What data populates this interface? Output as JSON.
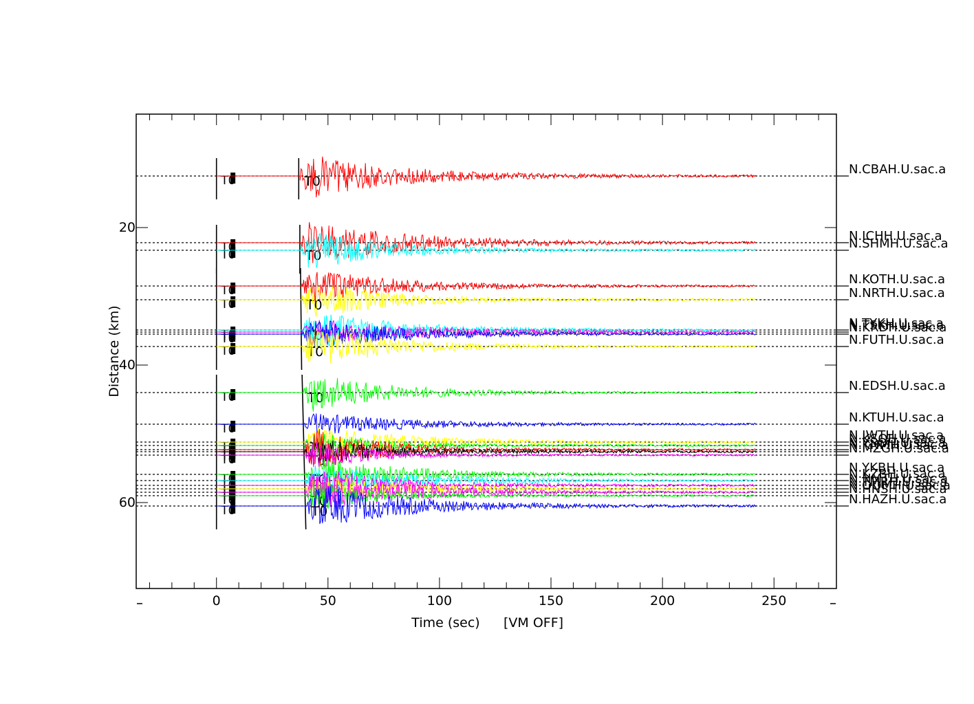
{
  "chart_data": {
    "type": "line",
    "title": "",
    "xlabel": "Time (sec)",
    "x_annotation": "[VM OFF]",
    "ylabel": "Distance (km)",
    "xlim": [
      -36,
      278
    ],
    "ylim": [
      72.5,
      3.5
    ],
    "x_ticks": [
      0,
      50,
      100,
      150,
      200,
      250
    ],
    "x_tick_labels": [
      "0",
      "50",
      "100",
      "150",
      "200",
      "250"
    ],
    "y_ticks": [
      20,
      40,
      60
    ],
    "y_tick_labels": [
      "20",
      "40",
      "60"
    ],
    "x_minor_step": 10,
    "grid": false,
    "legend": "none",
    "trace_start_sec": 0,
    "trace_end_sec": 242,
    "ref_marker_label": "T0",
    "stations": [
      {
        "name": "N.CBAH.U.sac.a",
        "distance": 12.5,
        "color": "#ff0000",
        "t0": 37.5,
        "label_t0": true,
        "amp": 1.0
      },
      {
        "name": "N.ICHH.U.sac.a",
        "distance": 22.2,
        "color": "#ff0000",
        "t0": 38.0,
        "label_t0": false,
        "amp": 1.0
      },
      {
        "name": "N.SHMH.U.sac.a",
        "distance": 23.3,
        "color": "#00ffff",
        "t0": 38.0,
        "label_t0": true,
        "amp": 0.9
      },
      {
        "name": "N.KOTH.U.sac.a",
        "distance": 28.5,
        "color": "#ff0000",
        "t0": 38.3,
        "label_t0": false,
        "amp": 0.8
      },
      {
        "name": "N.NRTH.U.sac.a",
        "distance": 30.5,
        "color": "#ffff00",
        "t0": 38.3,
        "label_t0": true,
        "amp": 0.9
      },
      {
        "name": "N.TYKH.U.sac.a",
        "distance": 34.9,
        "color": "#00ffff",
        "t0": 38.5,
        "label_t0": true,
        "amp": 0.9
      },
      {
        "name": "N.TSKH.U.sac.a",
        "distance": 35.2,
        "color": "#ff00ff",
        "t0": 38.5,
        "label_t0": false,
        "amp": 0.6
      },
      {
        "name": "N.KRDH.U.sac.a",
        "distance": 35.5,
        "color": "#0000ff",
        "t0": 38.5,
        "label_t0": false,
        "amp": 0.7
      },
      {
        "name": "N.FUTH.U.sac.a",
        "distance": 37.3,
        "color": "#ffff00",
        "t0": 38.8,
        "label_t0": true,
        "amp": 1.0
      },
      {
        "name": "N.EDSH.U.sac.a",
        "distance": 44.0,
        "color": "#00ff00",
        "t0": 39.0,
        "label_t0": true,
        "amp": 0.9
      },
      {
        "name": "N.KTUH.U.sac.a",
        "distance": 48.6,
        "color": "#0000ff",
        "t0": 39.5,
        "label_t0": false,
        "amp": 0.5
      },
      {
        "name": "N.IWTH.U.sac.a",
        "distance": 51.2,
        "color": "#ffff00",
        "t0": 39.7,
        "label_t0": true,
        "amp": 0.7
      },
      {
        "name": "N.KSOH.U.sac.a",
        "distance": 51.7,
        "color": "#00ff00",
        "t0": 39.7,
        "label_t0": false,
        "amp": 0.7
      },
      {
        "name": "N.YSOH.U.sac.a",
        "distance": 52.3,
        "color": "#ff0000",
        "t0": 39.8,
        "label_t0": false,
        "amp": 1.0
      },
      {
        "name": "N.KNMH.U.sac.a",
        "distance": 52.6,
        "color": "#000000",
        "t0": 39.8,
        "label_t0": false,
        "amp": 0.6
      },
      {
        "name": "N.MZGH.U.sac.a",
        "distance": 53.1,
        "color": "#ff00ff",
        "t0": 39.9,
        "label_t0": true,
        "amp": 0.6
      },
      {
        "name": "N.YKBH.U.sac.a",
        "distance": 55.9,
        "color": "#00ff00",
        "t0": 40.2,
        "label_t0": true,
        "amp": 0.8
      },
      {
        "name": "N.KZBH.U.sac.a",
        "distance": 56.8,
        "color": "#00ffff",
        "t0": 40.3,
        "label_t0": false,
        "amp": 0.7
      },
      {
        "name": "N.NMTH.U.sac.a",
        "distance": 57.5,
        "color": "#ff00ff",
        "t0": 40.4,
        "label_t0": false,
        "amp": 0.8
      },
      {
        "name": "N.TMRH.U.sac.a",
        "distance": 58.0,
        "color": "#ffff00",
        "t0": 40.4,
        "label_t0": false,
        "amp": 0.6
      },
      {
        "name": "N.OOMH.U.sac.a",
        "distance": 58.5,
        "color": "#ff00ff",
        "t0": 40.5,
        "label_t0": false,
        "amp": 0.9
      },
      {
        "name": "N.HNSH.U.sac.a",
        "distance": 59.0,
        "color": "#00ff00",
        "t0": 40.5,
        "label_t0": true,
        "amp": 0.7
      },
      {
        "name": "N.HAZH.U.sac.a",
        "distance": 60.5,
        "color": "#0000ff",
        "t0": 40.7,
        "label_t0": true,
        "amp": 1.0
      }
    ]
  }
}
